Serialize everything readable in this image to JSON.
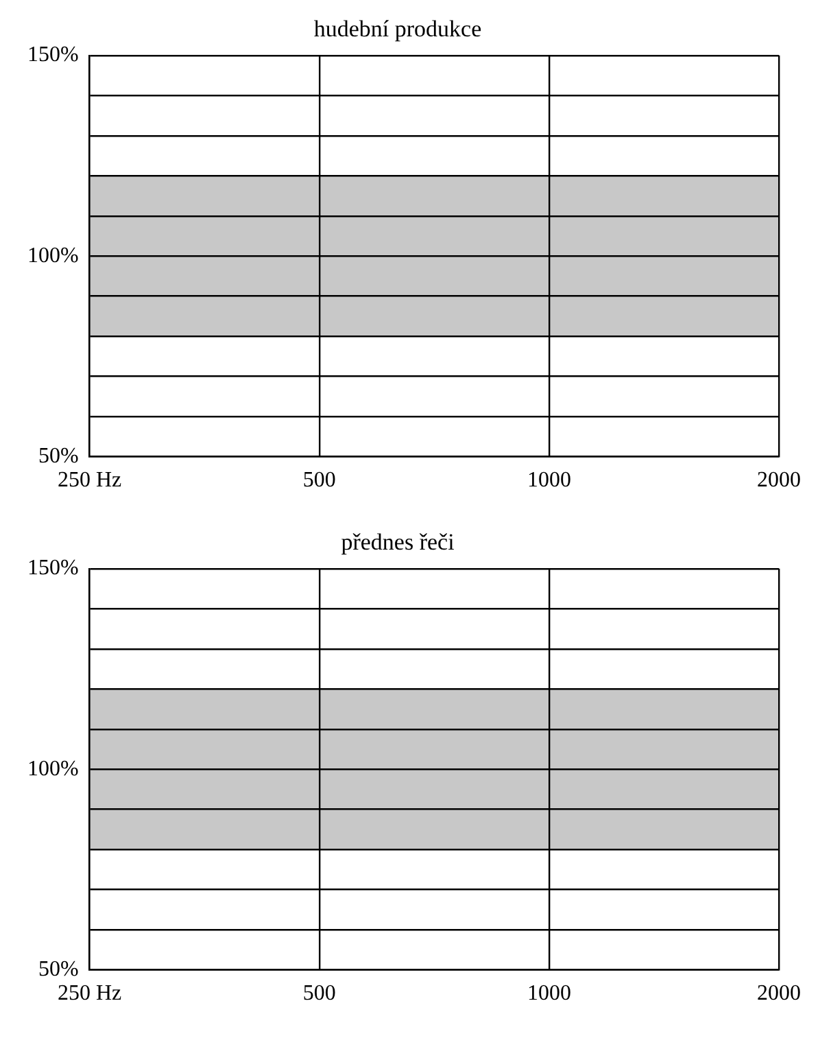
{
  "chart_data": [
    {
      "type": "line",
      "title": "hudební produkce",
      "log": "x",
      "xlim": [
        250,
        2000
      ],
      "xticks": [
        {
          "value": 250,
          "label": "250 Hz"
        },
        500,
        1000,
        2000
      ],
      "ylim": [
        50,
        150
      ],
      "yticks": [
        {
          "value": 50,
          "label": "50%"
        },
        {
          "value": 60,
          "label": null
        },
        {
          "value": 70,
          "label": null
        },
        {
          "value": 80,
          "label": null
        },
        {
          "value": 90,
          "label": null
        },
        {
          "value": 100,
          "label": "100%"
        },
        {
          "value": 110,
          "label": null
        },
        {
          "value": 120,
          "label": null
        },
        {
          "value": 130,
          "label": null
        },
        {
          "value": 140,
          "label": null
        },
        {
          "value": 150,
          "label": "150%"
        }
      ],
      "grid": true,
      "bands": [
        {
          "axis": "y",
          "from": 80,
          "to": 120,
          "color": "#c8c8c8"
        }
      ]
    },
    {
      "type": "line",
      "title": "přednes řeči",
      "log": "x",
      "xlim": [
        250,
        2000
      ],
      "xticks": [
        {
          "value": 250,
          "label": "250 Hz"
        },
        500,
        1000,
        2000
      ],
      "ylim": [
        50,
        150
      ],
      "yticks": [
        {
          "value": 50,
          "label": "50%"
        },
        {
          "value": 60,
          "label": null
        },
        {
          "value": 70,
          "label": null
        },
        {
          "value": 80,
          "label": null
        },
        {
          "value": 90,
          "label": null
        },
        {
          "value": 100,
          "label": "100%"
        },
        {
          "value": 110,
          "label": null
        },
        {
          "value": 120,
          "label": null
        },
        {
          "value": 130,
          "label": null
        },
        {
          "value": 140,
          "label": null
        },
        {
          "value": 150,
          "label": "150%"
        }
      ],
      "grid": true,
      "bands": [
        {
          "axis": "y",
          "from": 80,
          "to": 120,
          "color": "#c8c8c8"
        }
      ]
    }
  ]
}
